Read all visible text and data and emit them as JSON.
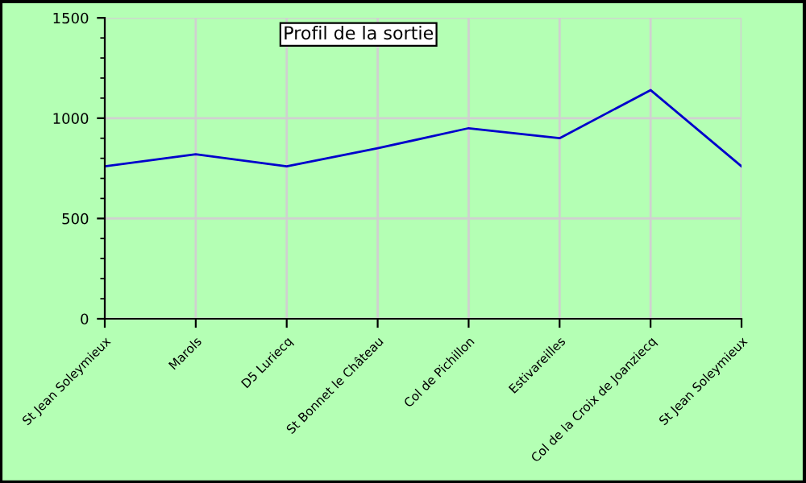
{
  "chart_data": {
    "type": "line",
    "title": "Profil de la sortie",
    "categories": [
      "St Jean Soleymieux",
      "Marols",
      "D5 Luriecq",
      "St Bonnet le Château",
      "Col de Pichillon",
      "Estivareilles",
      "Col de la Croix de Joanziecq",
      "St Jean Soleymieux"
    ],
    "series": [
      {
        "color": "#0000cc",
        "values": [
          760,
          820,
          760,
          850,
          950,
          900,
          1140,
          760
        ]
      }
    ],
    "ylim": [
      0,
      1500
    ],
    "yticks": [
      0,
      {
        "value": 100,
        "label": null
      },
      {
        "value": 200,
        "label": null
      },
      {
        "value": 300,
        "label": null
      },
      {
        "value": 400,
        "label": null
      },
      500,
      {
        "value": 600,
        "label": null
      },
      {
        "value": 700,
        "label": null
      },
      {
        "value": 800,
        "label": null
      },
      {
        "value": 900,
        "label": null
      },
      1000,
      {
        "value": 1100,
        "label": null
      },
      {
        "value": 1200,
        "label": null
      },
      {
        "value": 1300,
        "label": null
      },
      {
        "value": 1400,
        "label": null
      },
      1500
    ],
    "grid": true
  }
}
